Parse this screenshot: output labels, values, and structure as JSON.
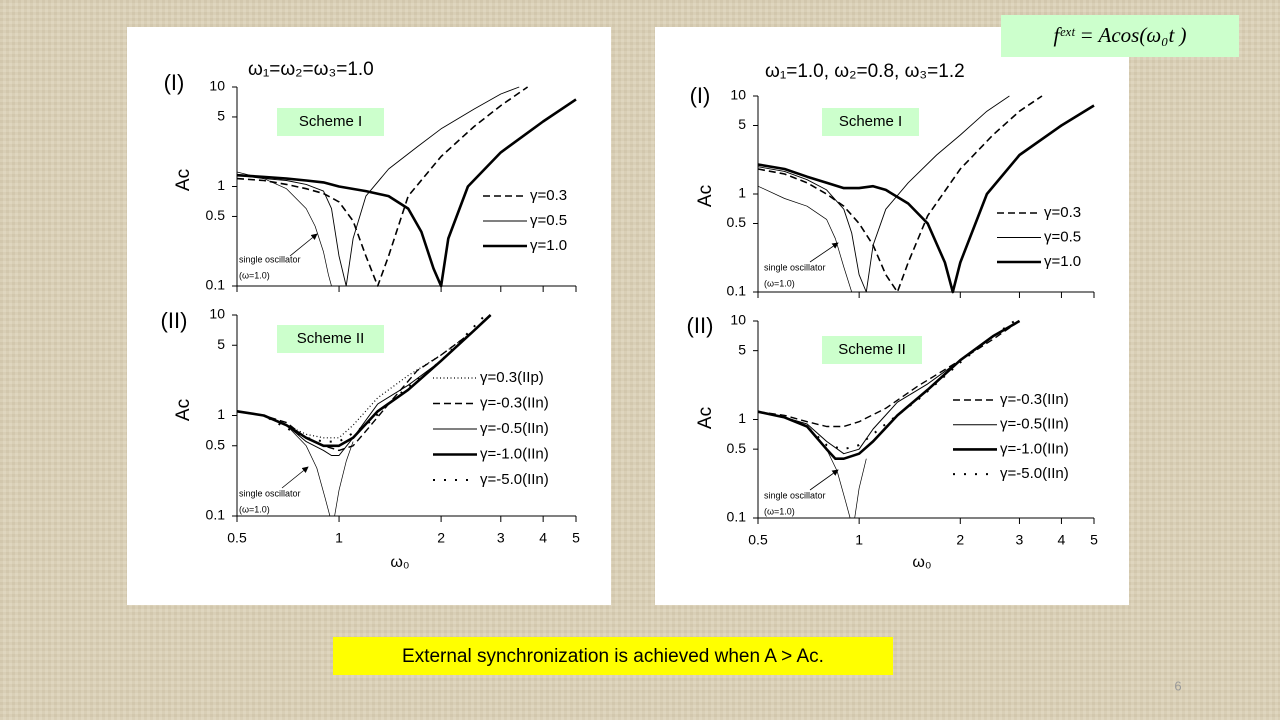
{
  "formula": "fᵉˣᵗ = Acos(ω₀t )",
  "caption": "External synchronization is achieved when A > Ac.",
  "page_number": "6",
  "chart_data": [
    {
      "type": "line",
      "title": "ω₁=ω₂=ω₃=1.0",
      "panel_label": "(I)",
      "scheme_label": "Scheme I",
      "note": [
        "single oscillator",
        "(ω=1.0)"
      ],
      "ylabel": "Ac",
      "xscale": "log",
      "yscale": "log",
      "xlim": [
        0.5,
        5
      ],
      "ylim": [
        0.1,
        10
      ],
      "xticks": [
        0.5,
        1,
        2,
        3,
        4,
        5
      ],
      "yticks": [
        0.1,
        0.5,
        1,
        5,
        10
      ],
      "x_tick_labels": false,
      "legend": "right",
      "series": [
        {
          "name": "γ=0.3",
          "color": "#000000",
          "line_style": "dashed",
          "line_width": 1.6,
          "x": [
            0.5,
            0.6,
            0.7,
            0.8,
            0.9,
            1.0,
            1.1,
            1.2,
            1.3,
            1.4,
            1.6,
            2.0,
            2.5,
            3.0,
            3.6
          ],
          "values": [
            1.2,
            1.15,
            1.05,
            0.95,
            0.85,
            0.7,
            0.45,
            0.2,
            0.1,
            0.2,
            0.8,
            2.0,
            4,
            6.5,
            10
          ]
        },
        {
          "name": "γ=0.5",
          "color": "#000000",
          "line_style": "solid",
          "line_width": 0.9,
          "x": [
            0.5,
            0.6,
            0.7,
            0.8,
            0.9,
            0.95,
            1.0,
            1.05,
            1.1,
            1.2,
            1.4,
            1.7,
            2.0,
            2.5,
            3.0,
            3.4
          ],
          "values": [
            1.3,
            1.2,
            1.15,
            1.05,
            0.9,
            0.6,
            0.2,
            0.1,
            0.3,
            0.8,
            1.5,
            2.5,
            3.8,
            6,
            8.5,
            10
          ]
        },
        {
          "name": "γ=1.0",
          "color": "#000000",
          "line_style": "solid",
          "line_width": 2.6,
          "x": [
            0.5,
            0.6,
            0.7,
            0.8,
            0.9,
            1.0,
            1.2,
            1.4,
            1.6,
            1.75,
            1.9,
            2.0,
            2.1,
            2.4,
            3.0,
            4.0,
            5.0
          ],
          "values": [
            1.3,
            1.25,
            1.2,
            1.15,
            1.1,
            1.0,
            0.9,
            0.8,
            0.6,
            0.35,
            0.15,
            0.1,
            0.3,
            1.0,
            2.2,
            4.5,
            7.5
          ]
        },
        {
          "color": "#000000",
          "line_style": "solid",
          "line_width": 0.7,
          "x": [
            0.5,
            0.6,
            0.7,
            0.8,
            0.85,
            0.9,
            0.93,
            0.95
          ],
          "values": [
            1.4,
            1.2,
            0.95,
            0.6,
            0.4,
            0.22,
            0.13,
            0.1
          ]
        }
      ]
    },
    {
      "type": "line",
      "panel_label": "(II)",
      "scheme_label": "Scheme II",
      "note": [
        "single oscillator",
        "(ω=1.0)"
      ],
      "ylabel": "Ac",
      "xlabel": "ω₀",
      "xscale": "log",
      "yscale": "log",
      "xlim": [
        0.5,
        5
      ],
      "ylim": [
        0.1,
        10
      ],
      "xticks": [
        0.5,
        1,
        2,
        3,
        4,
        5
      ],
      "yticks": [
        0.1,
        0.5,
        1,
        5,
        10
      ],
      "x_tick_labels": true,
      "legend": "right",
      "series": [
        {
          "name": "γ=0.3(IIp)",
          "color": "#000000",
          "line_style": "dotted",
          "line_width": 1.2,
          "x": [
            0.5,
            0.6,
            0.7,
            0.8,
            0.9,
            1.0,
            1.1,
            1.3,
            1.6,
            2.0,
            2.5,
            2.8
          ],
          "values": [
            1.1,
            1.0,
            0.8,
            0.65,
            0.6,
            0.6,
            0.8,
            1.5,
            2.5,
            4,
            7,
            10
          ]
        },
        {
          "name": "γ=-0.3(IIn)",
          "color": "#000000",
          "line_style": "dashed",
          "line_width": 1.4,
          "x": [
            0.5,
            0.6,
            0.7,
            0.8,
            0.9,
            1.0,
            1.1,
            1.2,
            1.4,
            1.7,
            2.0,
            2.5,
            2.8
          ],
          "values": [
            1.1,
            1.0,
            0.85,
            0.6,
            0.5,
            0.45,
            0.5,
            0.7,
            1.3,
            2.8,
            4,
            7,
            10
          ]
        },
        {
          "name": "γ=-0.5(IIn)",
          "color": "#000000",
          "line_style": "solid",
          "line_width": 1.0,
          "x": [
            0.5,
            0.6,
            0.7,
            0.8,
            0.9,
            0.95,
            1.0,
            1.1,
            1.3,
            1.6,
            2.0,
            2.5,
            2.8
          ],
          "values": [
            1.1,
            1.0,
            0.8,
            0.55,
            0.45,
            0.4,
            0.4,
            0.6,
            1.3,
            2.0,
            3.5,
            7,
            10
          ]
        },
        {
          "name": "γ=-1.0(IIn)",
          "color": "#000000",
          "line_style": "solid",
          "line_width": 2.6,
          "x": [
            0.5,
            0.6,
            0.7,
            0.8,
            0.9,
            1.0,
            1.1,
            1.3,
            1.6,
            2.0,
            2.5,
            2.8
          ],
          "values": [
            1.1,
            1.0,
            0.8,
            0.6,
            0.5,
            0.5,
            0.6,
            1.1,
            1.8,
            3.5,
            7,
            10
          ]
        },
        {
          "name": "γ=-5.0(IIn)",
          "color": "#000000",
          "line_style": "sparse",
          "line_width": 2.0,
          "x": [
            0.5,
            0.6,
            0.7,
            0.8,
            0.9,
            1.0,
            1.2,
            1.5,
            2.0,
            2.7
          ],
          "values": [
            1.1,
            1.0,
            0.75,
            0.6,
            0.55,
            0.55,
            0.8,
            1.6,
            3.5,
            10
          ]
        },
        {
          "color": "#000000",
          "line_style": "solid",
          "line_width": 0.7,
          "x": [
            0.5,
            0.6,
            0.7,
            0.8,
            0.86,
            0.91,
            0.94,
            0.97,
            1.0,
            1.05,
            1.1
          ],
          "values": [
            1.1,
            1.0,
            0.8,
            0.5,
            0.3,
            0.15,
            0.1,
            0.1,
            0.18,
            0.35,
            0.55
          ]
        }
      ]
    },
    {
      "type": "line",
      "title": "ω₁=1.0, ω₂=0.8, ω₃=1.2",
      "panel_label": "(I)",
      "scheme_label": "Scheme I",
      "note": [
        "single oscillator",
        "(ω=1.0)"
      ],
      "ylabel": "Ac",
      "xscale": "log",
      "yscale": "log",
      "xlim": [
        0.5,
        5
      ],
      "ylim": [
        0.1,
        10
      ],
      "xticks": [
        0.5,
        1,
        2,
        3,
        4,
        5
      ],
      "yticks": [
        0.1,
        0.5,
        1,
        5,
        10
      ],
      "x_tick_labels": false,
      "legend": "right",
      "series": [
        {
          "name": "γ=0.3",
          "color": "#000000",
          "line_style": "dashed",
          "line_width": 1.6,
          "x": [
            0.5,
            0.6,
            0.7,
            0.8,
            0.9,
            1.0,
            1.1,
            1.2,
            1.3,
            1.4,
            1.6,
            2.0,
            2.5,
            3.0,
            3.5
          ],
          "values": [
            1.8,
            1.6,
            1.3,
            1.0,
            0.75,
            0.5,
            0.3,
            0.15,
            0.1,
            0.2,
            0.6,
            1.8,
            4,
            7,
            10
          ]
        },
        {
          "name": "γ=0.5",
          "color": "#000000",
          "line_style": "solid",
          "line_width": 0.9,
          "x": [
            0.5,
            0.6,
            0.7,
            0.8,
            0.9,
            0.95,
            1.0,
            1.05,
            1.1,
            1.2,
            1.4,
            1.7,
            2.0,
            2.4,
            2.8
          ],
          "values": [
            1.9,
            1.7,
            1.4,
            1.1,
            0.7,
            0.4,
            0.15,
            0.1,
            0.3,
            0.7,
            1.3,
            2.5,
            4,
            7,
            10
          ]
        },
        {
          "name": "γ=1.0",
          "color": "#000000",
          "line_style": "solid",
          "line_width": 2.6,
          "x": [
            0.5,
            0.6,
            0.7,
            0.8,
            0.9,
            1.0,
            1.1,
            1.2,
            1.4,
            1.6,
            1.8,
            1.9,
            2.0,
            2.4,
            3.0,
            4.0,
            5.0
          ],
          "values": [
            2.0,
            1.8,
            1.5,
            1.3,
            1.15,
            1.15,
            1.2,
            1.1,
            0.8,
            0.5,
            0.2,
            0.1,
            0.2,
            1.0,
            2.5,
            5,
            8
          ]
        },
        {
          "color": "#000000",
          "line_style": "solid",
          "line_width": 0.7,
          "x": [
            0.5,
            0.6,
            0.7,
            0.8,
            0.85,
            0.9,
            0.95
          ],
          "values": [
            1.2,
            0.9,
            0.75,
            0.55,
            0.35,
            0.18,
            0.1
          ]
        }
      ]
    },
    {
      "type": "line",
      "panel_label": "(II)",
      "scheme_label": "Scheme II",
      "note": [
        "single oscillator",
        "(ω=1.0)"
      ],
      "ylabel": "Ac",
      "xlabel": "ω₀",
      "xscale": "log",
      "yscale": "log",
      "xlim": [
        0.5,
        5
      ],
      "ylim": [
        0.1,
        10
      ],
      "xticks": [
        0.5,
        1,
        2,
        3,
        4,
        5
      ],
      "yticks": [
        0.1,
        0.5,
        1,
        5,
        10
      ],
      "x_tick_labels": true,
      "legend": "right",
      "series": [
        {
          "name": "γ=-0.3(IIn)",
          "color": "#000000",
          "line_style": "dashed",
          "line_width": 1.4,
          "x": [
            0.5,
            0.6,
            0.7,
            0.8,
            0.9,
            1.0,
            1.2,
            1.5,
            2.0,
            2.5,
            3.0
          ],
          "values": [
            1.2,
            1.1,
            0.95,
            0.85,
            0.85,
            0.95,
            1.3,
            2.2,
            4,
            6.5,
            10
          ]
        },
        {
          "name": "γ=-0.5(IIn)",
          "color": "#000000",
          "line_style": "solid",
          "line_width": 1.0,
          "x": [
            0.5,
            0.6,
            0.7,
            0.8,
            0.9,
            1.0,
            1.1,
            1.3,
            1.6,
            2.0,
            2.5,
            3.0
          ],
          "values": [
            1.2,
            1.05,
            0.9,
            0.6,
            0.45,
            0.5,
            0.8,
            1.5,
            2.3,
            4,
            7,
            10
          ]
        },
        {
          "name": "γ=-1.0(IIn)",
          "color": "#000000",
          "line_style": "solid",
          "line_width": 2.6,
          "x": [
            0.5,
            0.6,
            0.7,
            0.8,
            0.85,
            0.9,
            1.0,
            1.1,
            1.3,
            1.6,
            2.0,
            2.5,
            3.0
          ],
          "values": [
            1.2,
            1.05,
            0.85,
            0.5,
            0.4,
            0.4,
            0.45,
            0.6,
            1.1,
            2.0,
            4,
            7,
            10
          ]
        },
        {
          "name": "γ=-5.0(IIn)",
          "color": "#000000",
          "line_style": "sparse",
          "line_width": 2.0,
          "x": [
            0.5,
            0.6,
            0.7,
            0.8,
            0.9,
            1.0,
            1.2,
            1.5,
            2.0,
            2.5,
            2.9
          ],
          "values": [
            1.2,
            1.05,
            0.85,
            0.55,
            0.5,
            0.55,
            0.9,
            1.6,
            3.8,
            7,
            10
          ]
        },
        {
          "color": "#000000",
          "line_style": "solid",
          "line_width": 0.7,
          "x": [
            0.5,
            0.6,
            0.7,
            0.8,
            0.86,
            0.91,
            0.94,
            0.97,
            1.0,
            1.05
          ],
          "values": [
            1.2,
            1.05,
            0.85,
            0.5,
            0.3,
            0.15,
            0.1,
            0.1,
            0.2,
            0.4
          ]
        }
      ]
    }
  ]
}
